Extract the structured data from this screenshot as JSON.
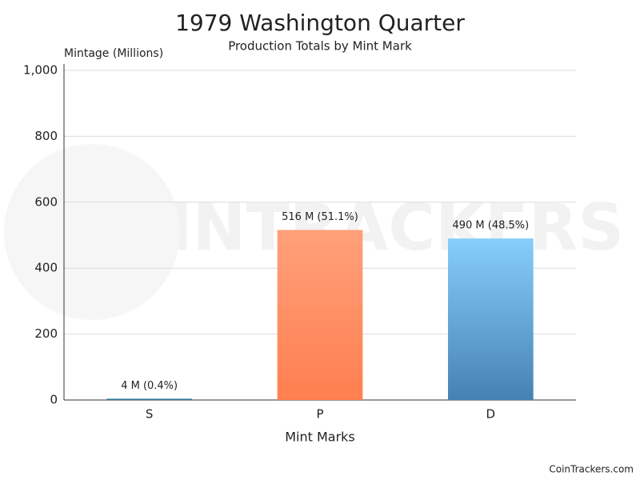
{
  "chart_data": {
    "type": "bar",
    "title": "1979 Washington Quarter",
    "subtitle": "Production Totals by Mint Mark",
    "y_label": "Mintage (Millions)",
    "x_label": "Mint Marks",
    "categories": [
      "S",
      "P",
      "D"
    ],
    "values": [
      4,
      516,
      490
    ],
    "value_labels": [
      "4 M (0.4%)",
      "516 M (51.1%)",
      "490 M (48.5%)"
    ],
    "gradients": [
      [
        "#4a8fb0",
        "#2e6b8a"
      ],
      [
        "#ffa07a",
        "#ff7f50"
      ],
      [
        "#87cefa",
        "#4682b4"
      ]
    ],
    "ylim": [
      0,
      1000
    ],
    "yticks": [
      0,
      200,
      400,
      600,
      800,
      {
        "value": 1000,
        "label": "1,000"
      }
    ],
    "grid": true,
    "watermark": "COINTRACKERS",
    "footer": "CoinTrackers.com"
  }
}
